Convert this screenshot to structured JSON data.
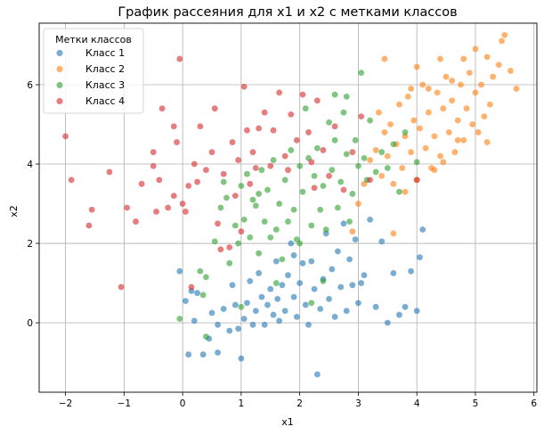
{
  "chart_data": {
    "type": "scatter",
    "title": "График рассеяния для x1 и x2 с метками классов",
    "xlabel": "x1",
    "ylabel": "x2",
    "xlim": [
      -2.45,
      6.05
    ],
    "ylim": [
      -1.75,
      7.55
    ],
    "xticks": [
      -2,
      -1,
      0,
      1,
      2,
      3,
      4,
      5,
      6
    ],
    "yticks": [
      0,
      2,
      4,
      6
    ],
    "grid": true,
    "legend": {
      "title": "Метки классов",
      "location": "top-left"
    },
    "series": [
      {
        "name": "Класс 1",
        "color": "#1f77b4",
        "points": [
          [
            -0.05,
            1.3
          ],
          [
            0.05,
            0.55
          ],
          [
            0.1,
            -0.8
          ],
          [
            0.15,
            0.8
          ],
          [
            0.2,
            0.05
          ],
          [
            0.25,
            0.75
          ],
          [
            0.35,
            -0.8
          ],
          [
            0.45,
            -0.4
          ],
          [
            0.5,
            0.25
          ],
          [
            0.6,
            -0.05
          ],
          [
            0.7,
            0.35
          ],
          [
            0.8,
            -0.2
          ],
          [
            0.85,
            0.95
          ],
          [
            0.9,
            0.45
          ],
          [
            0.95,
            -0.15
          ],
          [
            1.0,
            -0.9
          ],
          [
            1.05,
            0.1
          ],
          [
            1.1,
            0.5
          ],
          [
            1.15,
            1.05
          ],
          [
            1.2,
            -0.05
          ],
          [
            1.25,
            0.3
          ],
          [
            1.3,
            1.25
          ],
          [
            1.35,
            0.65
          ],
          [
            1.4,
            -0.05
          ],
          [
            1.45,
            0.45
          ],
          [
            1.5,
            0.85
          ],
          [
            1.55,
            0.2
          ],
          [
            1.6,
            1.55
          ],
          [
            1.62,
            0.6
          ],
          [
            1.65,
            0.05
          ],
          [
            1.7,
            0.95
          ],
          [
            1.75,
            0.3
          ],
          [
            1.8,
            1.2
          ],
          [
            1.85,
            2.0
          ],
          [
            1.9,
            0.65
          ],
          [
            1.95,
            0.15
          ],
          [
            2.0,
            1.0
          ],
          [
            2.05,
            1.5
          ],
          [
            2.1,
            0.45
          ],
          [
            2.15,
            -0.05
          ],
          [
            2.2,
            1.55
          ],
          [
            2.25,
            0.85
          ],
          [
            2.3,
            -1.3
          ],
          [
            2.35,
            0.35
          ],
          [
            2.4,
            1.1
          ],
          [
            2.45,
            2.25
          ],
          [
            2.5,
            0.6
          ],
          [
            2.55,
            1.35
          ],
          [
            2.6,
            0.15
          ],
          [
            2.65,
            1.8
          ],
          [
            2.7,
            0.9
          ],
          [
            2.75,
            2.5
          ],
          [
            2.8,
            0.3
          ],
          [
            2.85,
            1.6
          ],
          [
            2.9,
            0.95
          ],
          [
            2.95,
            2.1
          ],
          [
            3.0,
            0.5
          ],
          [
            3.05,
            1.0
          ],
          [
            3.1,
            1.2
          ],
          [
            3.2,
            2.6
          ],
          [
            3.3,
            0.4
          ],
          [
            3.4,
            2.05
          ],
          [
            3.5,
            0.0
          ],
          [
            3.6,
            1.25
          ],
          [
            3.7,
            0.2
          ],
          [
            3.8,
            0.4
          ],
          [
            3.9,
            1.3
          ],
          [
            4.0,
            0.3
          ],
          [
            4.05,
            1.65
          ],
          [
            4.1,
            2.35
          ],
          [
            0.6,
            -0.75
          ],
          [
            1.9,
            1.7
          ]
        ]
      },
      {
        "name": "Класс 2",
        "color": "#ff7f0e",
        "points": [
          [
            2.9,
            2.3
          ],
          [
            3.0,
            3.0
          ],
          [
            3.1,
            3.5
          ],
          [
            3.2,
            4.1
          ],
          [
            3.3,
            4.35
          ],
          [
            3.35,
            5.3
          ],
          [
            3.4,
            3.7
          ],
          [
            3.45,
            4.8
          ],
          [
            3.5,
            4.2
          ],
          [
            3.55,
            5.0
          ],
          [
            3.6,
            3.5
          ],
          [
            3.65,
            4.5
          ],
          [
            3.7,
            5.5
          ],
          [
            3.75,
            3.9
          ],
          [
            3.8,
            4.7
          ],
          [
            3.85,
            5.7
          ],
          [
            3.9,
            4.3
          ],
          [
            3.95,
            5.1
          ],
          [
            4.0,
            3.6
          ],
          [
            4.05,
            4.9
          ],
          [
            4.1,
            6.0
          ],
          [
            4.15,
            4.4
          ],
          [
            4.2,
            5.3
          ],
          [
            4.25,
            3.9
          ],
          [
            4.3,
            4.7
          ],
          [
            4.35,
            5.8
          ],
          [
            4.4,
            4.2
          ],
          [
            4.45,
            5.4
          ],
          [
            4.5,
            6.2
          ],
          [
            4.55,
            4.8
          ],
          [
            4.6,
            5.6
          ],
          [
            4.65,
            4.3
          ],
          [
            4.7,
            5.1
          ],
          [
            4.75,
            6.0
          ],
          [
            4.8,
            4.6
          ],
          [
            4.85,
            5.4
          ],
          [
            4.9,
            6.3
          ],
          [
            4.95,
            5.0
          ],
          [
            5.0,
            5.8
          ],
          [
            5.05,
            4.8
          ],
          [
            5.1,
            6.0
          ],
          [
            5.15,
            5.2
          ],
          [
            5.2,
            6.7
          ],
          [
            5.25,
            5.5
          ],
          [
            5.3,
            6.2
          ],
          [
            5.4,
            6.5
          ],
          [
            5.5,
            7.25
          ],
          [
            5.6,
            6.35
          ],
          [
            5.7,
            5.9
          ],
          [
            3.45,
            6.65
          ],
          [
            3.6,
            2.25
          ],
          [
            4.0,
            6.45
          ],
          [
            4.2,
            5.9
          ],
          [
            4.4,
            6.65
          ],
          [
            4.6,
            6.1
          ],
          [
            4.8,
            6.65
          ],
          [
            5.0,
            6.9
          ],
          [
            5.2,
            4.55
          ],
          [
            4.3,
            3.85
          ],
          [
            3.8,
            3.3
          ],
          [
            5.45,
            7.1
          ],
          [
            3.9,
            5.9
          ],
          [
            4.45,
            4.05
          ],
          [
            4.7,
            4.6
          ]
        ]
      },
      {
        "name": "Класс 3",
        "color": "#2ca02c",
        "points": [
          [
            -0.05,
            0.1
          ],
          [
            0.3,
            1.3
          ],
          [
            0.35,
            0.7
          ],
          [
            0.4,
            1.15
          ],
          [
            0.55,
            2.05
          ],
          [
            0.65,
            2.9
          ],
          [
            0.7,
            3.55
          ],
          [
            0.75,
            3.15
          ],
          [
            0.8,
            1.5
          ],
          [
            0.9,
            2.45
          ],
          [
            0.95,
            2.0
          ],
          [
            1.0,
            3.45
          ],
          [
            1.05,
            2.6
          ],
          [
            1.1,
            3.75
          ],
          [
            1.15,
            2.15
          ],
          [
            1.2,
            3.1
          ],
          [
            1.25,
            2.95
          ],
          [
            1.3,
            1.75
          ],
          [
            1.35,
            3.85
          ],
          [
            1.4,
            2.55
          ],
          [
            1.45,
            3.35
          ],
          [
            1.5,
            2.15
          ],
          [
            1.55,
            4.1
          ],
          [
            1.6,
            2.35
          ],
          [
            1.65,
            3.0
          ],
          [
            1.7,
            1.6
          ],
          [
            1.75,
            3.6
          ],
          [
            1.8,
            2.55
          ],
          [
            1.85,
            4.35
          ],
          [
            1.9,
            2.85
          ],
          [
            1.95,
            2.1
          ],
          [
            2.0,
            3.95
          ],
          [
            2.05,
            3.3
          ],
          [
            2.1,
            5.4
          ],
          [
            2.15,
            4.15
          ],
          [
            2.2,
            2.45
          ],
          [
            2.25,
            3.7
          ],
          [
            2.3,
            4.4
          ],
          [
            2.35,
            2.85
          ],
          [
            2.4,
            3.45
          ],
          [
            2.45,
            2.35
          ],
          [
            2.5,
            5.05
          ],
          [
            2.55,
            3.85
          ],
          [
            2.6,
            4.6
          ],
          [
            2.65,
            2.9
          ],
          [
            2.7,
            3.55
          ],
          [
            2.75,
            5.3
          ],
          [
            2.8,
            4.25
          ],
          [
            2.85,
            2.55
          ],
          [
            2.9,
            3.25
          ],
          [
            2.95,
            4.6
          ],
          [
            3.0,
            3.95
          ],
          [
            3.05,
            6.3
          ],
          [
            3.1,
            4.15
          ],
          [
            3.15,
            3.6
          ],
          [
            3.2,
            5.1
          ],
          [
            3.3,
            3.8
          ],
          [
            3.4,
            4.3
          ],
          [
            3.5,
            3.9
          ],
          [
            3.6,
            4.5
          ],
          [
            3.7,
            3.3
          ],
          [
            3.8,
            4.8
          ],
          [
            4.0,
            4.05
          ],
          [
            2.6,
            5.75
          ],
          [
            2.4,
            1.05
          ],
          [
            2.2,
            0.5
          ],
          [
            1.0,
            0.4
          ],
          [
            0.4,
            -0.35
          ],
          [
            1.3,
            3.25
          ],
          [
            2.0,
            2.0
          ],
          [
            1.6,
            1.0
          ],
          [
            2.8,
            5.7
          ]
        ]
      },
      {
        "name": "Класс 4",
        "color": "#d62728",
        "points": [
          [
            -2.0,
            4.7
          ],
          [
            -1.9,
            3.6
          ],
          [
            -1.6,
            2.45
          ],
          [
            -1.55,
            2.85
          ],
          [
            -1.25,
            3.8
          ],
          [
            -1.05,
            0.9
          ],
          [
            -0.95,
            2.9
          ],
          [
            -0.8,
            2.55
          ],
          [
            -0.7,
            3.5
          ],
          [
            -0.5,
            4.3
          ],
          [
            -0.45,
            2.8
          ],
          [
            -0.4,
            3.6
          ],
          [
            -0.35,
            5.4
          ],
          [
            -0.25,
            2.9
          ],
          [
            -0.15,
            3.2
          ],
          [
            -0.15,
            4.95
          ],
          [
            -0.1,
            4.55
          ],
          [
            -0.05,
            6.65
          ],
          [
            0.0,
            3.0
          ],
          [
            0.05,
            2.8
          ],
          [
            0.1,
            3.45
          ],
          [
            0.15,
            0.9
          ],
          [
            0.2,
            4.0
          ],
          [
            0.25,
            3.55
          ],
          [
            0.3,
            4.95
          ],
          [
            0.4,
            3.85
          ],
          [
            0.5,
            4.3
          ],
          [
            0.55,
            5.4
          ],
          [
            0.6,
            2.5
          ],
          [
            0.7,
            3.75
          ],
          [
            0.8,
            1.9
          ],
          [
            0.85,
            4.55
          ],
          [
            0.9,
            3.2
          ],
          [
            0.95,
            4.1
          ],
          [
            1.0,
            2.3
          ],
          [
            1.05,
            5.95
          ],
          [
            1.1,
            4.85
          ],
          [
            1.15,
            3.5
          ],
          [
            1.2,
            4.3
          ],
          [
            1.3,
            4.9
          ],
          [
            1.4,
            5.3
          ],
          [
            1.5,
            3.95
          ],
          [
            1.55,
            4.85
          ],
          [
            1.65,
            5.8
          ],
          [
            1.75,
            4.2
          ],
          [
            1.85,
            5.25
          ],
          [
            1.95,
            4.6
          ],
          [
            2.05,
            5.75
          ],
          [
            2.15,
            4.8
          ],
          [
            2.25,
            3.4
          ],
          [
            2.3,
            5.6
          ],
          [
            2.4,
            4.35
          ],
          [
            2.5,
            3.7
          ],
          [
            2.6,
            4.95
          ],
          [
            2.75,
            3.35
          ],
          [
            2.9,
            4.3
          ],
          [
            3.05,
            5.2
          ],
          [
            3.2,
            3.6
          ],
          [
            4.0,
            3.6
          ],
          [
            1.25,
            3.9
          ],
          [
            0.65,
            1.85
          ],
          [
            -0.5,
            3.95
          ],
          [
            1.8,
            3.85
          ],
          [
            2.2,
            4.05
          ]
        ]
      }
    ]
  }
}
